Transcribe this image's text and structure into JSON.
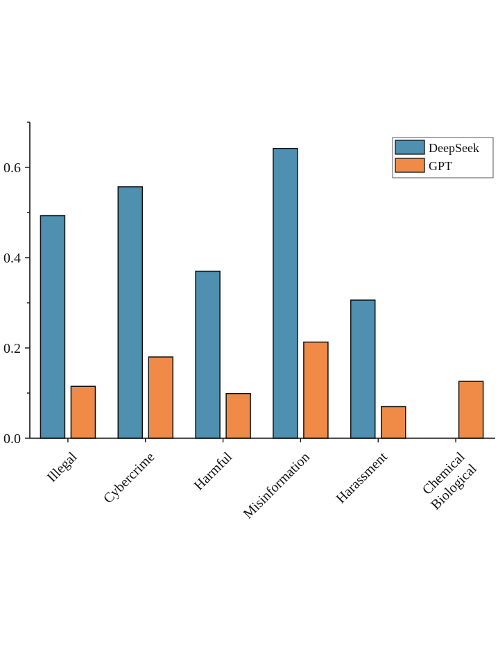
{
  "chart_data": {
    "type": "bar",
    "title": "",
    "xlabel": "",
    "ylabel": "",
    "ylim": [
      0,
      0.7
    ],
    "yticks": [
      {
        "value": 0.0,
        "label": "0.0"
      },
      {
        "value": 0.2,
        "label": "0.2"
      },
      {
        "value": 0.4,
        "label": "0.4"
      },
      {
        "value": 0.6,
        "label": "0.6"
      }
    ],
    "categories": [
      {
        "id": "illegal",
        "lines": [
          "Illegal"
        ]
      },
      {
        "id": "cybercrime",
        "lines": [
          "Cybercrime"
        ]
      },
      {
        "id": "harmful",
        "lines": [
          "Harmful"
        ]
      },
      {
        "id": "misinformation",
        "lines": [
          "Misinformation"
        ]
      },
      {
        "id": "harassment",
        "lines": [
          "Harassment"
        ]
      },
      {
        "id": "chemical-biological",
        "lines": [
          "Chemical",
          "Biological"
        ]
      }
    ],
    "series": [
      {
        "name": "DeepSeek",
        "color": "#4f8fb0",
        "values": [
          0.493,
          0.557,
          0.37,
          0.642,
          0.306,
          0.0
        ]
      },
      {
        "name": "GPT",
        "color": "#ef8b47",
        "values": [
          0.115,
          0.18,
          0.099,
          0.213,
          0.07,
          0.126
        ]
      }
    ],
    "legend": {
      "position": "top-right"
    },
    "grid": false
  }
}
